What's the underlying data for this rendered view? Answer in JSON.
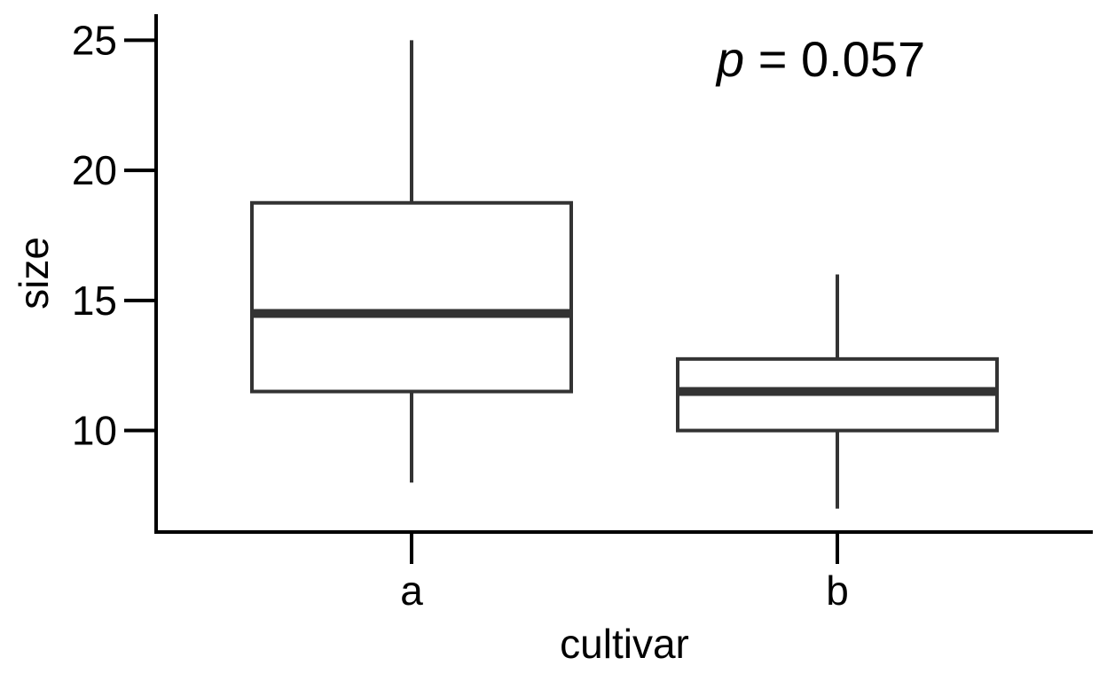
{
  "chart_data": {
    "type": "boxplot",
    "xlabel": "cultivar",
    "ylabel": "size",
    "categories": [
      "a",
      "b"
    ],
    "boxes": [
      {
        "category": "a",
        "min": 8,
        "q1": 11.5,
        "median": 14.5,
        "q3": 18.75,
        "max": 25
      },
      {
        "category": "b",
        "min": 7,
        "q1": 10,
        "median": 11.5,
        "q3": 12.75,
        "max": 16
      }
    ],
    "yticks": [
      10,
      15,
      20,
      25
    ],
    "ylim": [
      6.1,
      26
    ],
    "grid": false,
    "legend": "none",
    "annotation": {
      "italic": "p",
      "text": " = 0.057"
    },
    "colors": {
      "box_stroke": "#333333",
      "axis": "#000000"
    }
  }
}
